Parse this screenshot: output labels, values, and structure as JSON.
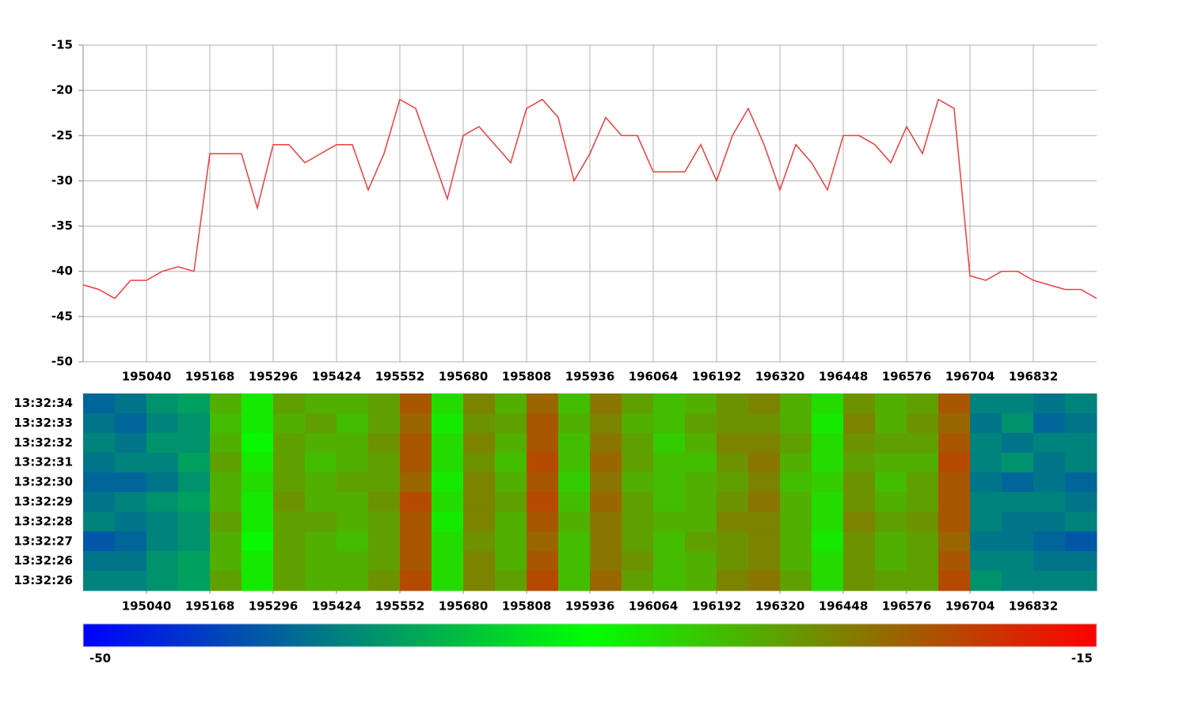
{
  "chart_data": [
    {
      "type": "line",
      "x": [
        194912,
        194944,
        194976,
        195008,
        195040,
        195072,
        195104,
        195136,
        195168,
        195200,
        195232,
        195264,
        195296,
        195328,
        195360,
        195392,
        195424,
        195456,
        195488,
        195520,
        195552,
        195584,
        195616,
        195648,
        195680,
        195712,
        195744,
        195776,
        195808,
        195840,
        195872,
        195904,
        195936,
        195968,
        196000,
        196032,
        196064,
        196096,
        196128,
        196160,
        196192,
        196224,
        196256,
        196288,
        196320,
        196352,
        196384,
        196416,
        196448,
        196480,
        196512,
        196544,
        196576,
        196608,
        196640,
        196672,
        196704,
        196736,
        196768,
        196800,
        196832,
        196864,
        196896,
        196928,
        196960
      ],
      "values": [
        -41.5,
        -42,
        -43,
        -41,
        -41,
        -40,
        -39.5,
        -40,
        -27,
        -27,
        -27,
        -33,
        -26,
        -26,
        -28,
        -27,
        -26,
        -26,
        -31,
        -27,
        -21,
        -22,
        -27,
        -32,
        -25,
        -24,
        -26,
        -28,
        -22,
        -21,
        -23,
        -30,
        -27,
        -23,
        -25,
        -25,
        -29,
        -29,
        -29,
        -26,
        -30,
        -25,
        -22,
        -26,
        -31,
        -26,
        -28,
        -31,
        -25,
        -25,
        -26,
        -28,
        -24,
        -27,
        -21,
        -22,
        -40.5,
        -41,
        -40,
        -40,
        -41,
        -41.5,
        -42,
        -42,
        -43
      ],
      "color": "#f03c3c",
      "xlim": [
        194912,
        196960
      ],
      "xticks": [
        195040,
        195168,
        195296,
        195424,
        195552,
        195680,
        195808,
        195936,
        196064,
        196192,
        196320,
        196448,
        196576,
        196704,
        196832
      ],
      "ylim": [
        -50,
        -15
      ],
      "yticks": [
        -50,
        -45,
        -40,
        -35,
        -30,
        -25,
        -20,
        -15
      ],
      "grid": true
    },
    {
      "type": "heatmap",
      "x_bins": [
        194912,
        194976,
        195040,
        195104,
        195168,
        195232,
        195296,
        195360,
        195424,
        195488,
        195552,
        195616,
        195680,
        195744,
        195808,
        195872,
        195936,
        196000,
        196064,
        196128,
        196192,
        196256,
        196320,
        196384,
        196448,
        196512,
        196576,
        196640,
        196704,
        196768,
        196832,
        196896,
        196960
      ],
      "y_categories": [
        "13:32:34",
        "13:32:33",
        "13:32:32",
        "13:32:31",
        "13:32:30",
        "13:32:29",
        "13:32:28",
        "13:32:27",
        "13:32:26",
        "13:32:26"
      ],
      "values": [
        [
          -43,
          -42,
          -40,
          -39,
          -27,
          -31,
          -26,
          -27,
          -27,
          -26,
          -21,
          -30,
          -24,
          -27,
          -22,
          -28,
          -23,
          -26,
          -28,
          -27,
          -25,
          -24,
          -27,
          -30,
          -25,
          -27,
          -26,
          -21,
          -41,
          -41,
          -42,
          -41
        ],
        [
          -42,
          -43,
          -41,
          -40,
          -28,
          -31,
          -27,
          -26,
          -28,
          -26,
          -22,
          -31,
          -25,
          -26,
          -21,
          -27,
          -24,
          -27,
          -28,
          -26,
          -25,
          -25,
          -27,
          -31,
          -24,
          -27,
          -25,
          -22,
          -42,
          -40,
          -43,
          -42
        ],
        [
          -41,
          -42,
          -40,
          -40,
          -27,
          -32,
          -26,
          -27,
          -27,
          -25,
          -21,
          -30,
          -24,
          -27,
          -21,
          -28,
          -23,
          -26,
          -29,
          -27,
          -24,
          -24,
          -26,
          -30,
          -25,
          -26,
          -26,
          -21,
          -41,
          -42,
          -41,
          -41
        ],
        [
          -42,
          -41,
          -41,
          -39,
          -26,
          -31,
          -26,
          -28,
          -27,
          -26,
          -21,
          -30,
          -25,
          -28,
          -20,
          -28,
          -22,
          -26,
          -28,
          -28,
          -25,
          -23,
          -27,
          -30,
          -26,
          -27,
          -27,
          -20,
          -41,
          -40,
          -42,
          -41
        ],
        [
          -43,
          -43,
          -42,
          -40,
          -27,
          -30,
          -26,
          -27,
          -26,
          -26,
          -22,
          -31,
          -24,
          -27,
          -21,
          -29,
          -23,
          -27,
          -28,
          -27,
          -26,
          -24,
          -28,
          -29,
          -25,
          -28,
          -26,
          -21,
          -42,
          -43,
          -42,
          -43
        ],
        [
          -42,
          -41,
          -40,
          -39,
          -27,
          -31,
          -25,
          -27,
          -27,
          -25,
          -20,
          -30,
          -24,
          -26,
          -20,
          -28,
          -22,
          -26,
          -28,
          -27,
          -25,
          -23,
          -27,
          -30,
          -25,
          -27,
          -26,
          -21,
          -41,
          -41,
          -41,
          -42
        ],
        [
          -41,
          -42,
          -41,
          -40,
          -26,
          -31,
          -26,
          -26,
          -27,
          -26,
          -21,
          -31,
          -24,
          -27,
          -21,
          -27,
          -23,
          -26,
          -27,
          -27,
          -24,
          -24,
          -27,
          -30,
          -24,
          -26,
          -25,
          -21,
          -41,
          -42,
          -42,
          -41
        ],
        [
          -44,
          -43,
          -41,
          -40,
          -27,
          -32,
          -26,
          -27,
          -28,
          -26,
          -21,
          -30,
          -25,
          -27,
          -22,
          -28,
          -23,
          -26,
          -28,
          -26,
          -25,
          -24,
          -27,
          -31,
          -25,
          -27,
          -26,
          -22,
          -42,
          -42,
          -43,
          -44
        ],
        [
          -42,
          -42,
          -40,
          -39,
          -27,
          -31,
          -26,
          -27,
          -27,
          -26,
          -21,
          -30,
          -24,
          -27,
          -21,
          -28,
          -23,
          -25,
          -28,
          -27,
          -25,
          -24,
          -27,
          -30,
          -25,
          -27,
          -26,
          -21,
          -41,
          -41,
          -42,
          -42
        ],
        [
          -41,
          -41,
          -40,
          -39,
          -26,
          -31,
          -26,
          -27,
          -27,
          -25,
          -20,
          -30,
          -24,
          -26,
          -20,
          -28,
          -22,
          -26,
          -28,
          -27,
          -24,
          -23,
          -26,
          -30,
          -25,
          -26,
          -26,
          -20,
          -40,
          -41,
          -41,
          -41
        ]
      ],
      "xlim": [
        194912,
        196960
      ],
      "xticks": [
        195040,
        195168,
        195296,
        195424,
        195552,
        195680,
        195808,
        195936,
        196064,
        196192,
        196320,
        196448,
        196576,
        196704,
        196832
      ],
      "clim": [
        -50,
        -15
      ],
      "colormap": [
        "#0000ff",
        "#00ff00",
        "#ff0000"
      ]
    }
  ]
}
